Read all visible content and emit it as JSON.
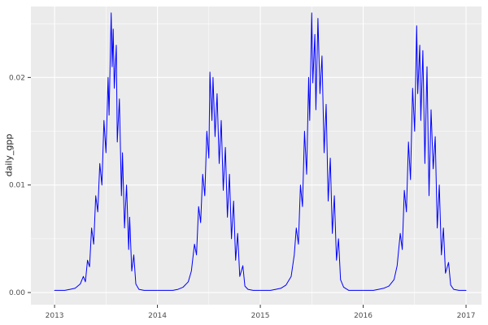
{
  "chart_data": {
    "type": "line",
    "title": "",
    "xlabel": "",
    "ylabel": "daily_gpp",
    "panel_background": "#EBEBEB",
    "grid_color": "#FFFFFF",
    "axis_text_color": "#4D4D4D",
    "tick_mark_color": "#333333",
    "legend": "none",
    "xlim": [
      2012.77,
      2017.15
    ],
    "ylim": [
      -0.00113,
      0.0266
    ],
    "x_ticks": [
      2013,
      2014,
      2015,
      2016,
      2017
    ],
    "x_tick_labels": [
      "2013",
      "2014",
      "2015",
      "2016",
      "2017"
    ],
    "x_minor_ticks": [
      2013.5,
      2014.5,
      2015.5,
      2016.5
    ],
    "y_ticks": [
      0,
      0.01,
      0.02
    ],
    "y_tick_labels": [
      "0.00",
      "0.01",
      "0.02"
    ],
    "y_minor_ticks": [
      0.005,
      0.015,
      0.025
    ],
    "series": [
      {
        "name": "daily_gpp",
        "color": "#0000FF",
        "points": [
          [
            2013.0,
            0.0002
          ],
          [
            2013.05,
            0.0002
          ],
          [
            2013.1,
            0.0002
          ],
          [
            2013.15,
            0.0003
          ],
          [
            2013.2,
            0.0004
          ],
          [
            2013.25,
            0.0008
          ],
          [
            2013.28,
            0.0015
          ],
          [
            2013.3,
            0.001
          ],
          [
            2013.32,
            0.003
          ],
          [
            2013.34,
            0.0024
          ],
          [
            2013.36,
            0.006
          ],
          [
            2013.38,
            0.0045
          ],
          [
            2013.4,
            0.009
          ],
          [
            2013.42,
            0.0075
          ],
          [
            2013.44,
            0.012
          ],
          [
            2013.46,
            0.01
          ],
          [
            2013.48,
            0.016
          ],
          [
            2013.5,
            0.013
          ],
          [
            2013.52,
            0.02
          ],
          [
            2013.53,
            0.0165
          ],
          [
            2013.55,
            0.026
          ],
          [
            2013.56,
            0.021
          ],
          [
            2013.57,
            0.0245
          ],
          [
            2013.58,
            0.019
          ],
          [
            2013.6,
            0.023
          ],
          [
            2013.61,
            0.014
          ],
          [
            2013.63,
            0.018
          ],
          [
            2013.65,
            0.009
          ],
          [
            2013.66,
            0.013
          ],
          [
            2013.68,
            0.006
          ],
          [
            2013.7,
            0.01
          ],
          [
            2013.72,
            0.004
          ],
          [
            2013.73,
            0.007
          ],
          [
            2013.75,
            0.002
          ],
          [
            2013.77,
            0.0035
          ],
          [
            2013.79,
            0.0008
          ],
          [
            2013.82,
            0.0003
          ],
          [
            2013.87,
            0.0002
          ],
          [
            2013.93,
            0.0002
          ],
          [
            2014.0,
            0.0002
          ],
          [
            2014.05,
            0.0002
          ],
          [
            2014.1,
            0.0002
          ],
          [
            2014.15,
            0.0002
          ],
          [
            2014.2,
            0.0003
          ],
          [
            2014.25,
            0.0005
          ],
          [
            2014.3,
            0.001
          ],
          [
            2014.33,
            0.002
          ],
          [
            2014.36,
            0.0045
          ],
          [
            2014.38,
            0.0035
          ],
          [
            2014.4,
            0.008
          ],
          [
            2014.42,
            0.0065
          ],
          [
            2014.44,
            0.011
          ],
          [
            2014.46,
            0.009
          ],
          [
            2014.48,
            0.015
          ],
          [
            2014.5,
            0.0125
          ],
          [
            2014.51,
            0.0205
          ],
          [
            2014.53,
            0.016
          ],
          [
            2014.54,
            0.02
          ],
          [
            2014.56,
            0.0145
          ],
          [
            2014.58,
            0.0185
          ],
          [
            2014.6,
            0.012
          ],
          [
            2014.62,
            0.016
          ],
          [
            2014.64,
            0.0095
          ],
          [
            2014.66,
            0.0135
          ],
          [
            2014.68,
            0.007
          ],
          [
            2014.7,
            0.011
          ],
          [
            2014.72,
            0.005
          ],
          [
            2014.74,
            0.0085
          ],
          [
            2014.76,
            0.003
          ],
          [
            2014.78,
            0.0055
          ],
          [
            2014.8,
            0.0015
          ],
          [
            2014.83,
            0.0025
          ],
          [
            2014.85,
            0.0006
          ],
          [
            2014.88,
            0.0003
          ],
          [
            2014.93,
            0.0002
          ],
          [
            2015.0,
            0.0002
          ],
          [
            2015.05,
            0.0002
          ],
          [
            2015.1,
            0.0002
          ],
          [
            2015.15,
            0.0003
          ],
          [
            2015.2,
            0.0004
          ],
          [
            2015.25,
            0.0007
          ],
          [
            2015.3,
            0.0015
          ],
          [
            2015.33,
            0.0035
          ],
          [
            2015.35,
            0.006
          ],
          [
            2015.37,
            0.0045
          ],
          [
            2015.39,
            0.01
          ],
          [
            2015.41,
            0.008
          ],
          [
            2015.43,
            0.015
          ],
          [
            2015.45,
            0.011
          ],
          [
            2015.47,
            0.02
          ],
          [
            2015.48,
            0.016
          ],
          [
            2015.5,
            0.026
          ],
          [
            2015.51,
            0.0195
          ],
          [
            2015.53,
            0.024
          ],
          [
            2015.54,
            0.017
          ],
          [
            2015.56,
            0.0255
          ],
          [
            2015.58,
            0.0185
          ],
          [
            2015.6,
            0.022
          ],
          [
            2015.62,
            0.013
          ],
          [
            2015.64,
            0.0175
          ],
          [
            2015.66,
            0.0085
          ],
          [
            2015.68,
            0.0125
          ],
          [
            2015.7,
            0.0055
          ],
          [
            2015.72,
            0.009
          ],
          [
            2015.74,
            0.003
          ],
          [
            2015.76,
            0.005
          ],
          [
            2015.78,
            0.0012
          ],
          [
            2015.81,
            0.0005
          ],
          [
            2015.86,
            0.0002
          ],
          [
            2015.92,
            0.0002
          ],
          [
            2016.0,
            0.0002
          ],
          [
            2016.05,
            0.0002
          ],
          [
            2016.1,
            0.0002
          ],
          [
            2016.15,
            0.0003
          ],
          [
            2016.2,
            0.0004
          ],
          [
            2016.25,
            0.0006
          ],
          [
            2016.3,
            0.0012
          ],
          [
            2016.33,
            0.0025
          ],
          [
            2016.36,
            0.0055
          ],
          [
            2016.38,
            0.004
          ],
          [
            2016.4,
            0.0095
          ],
          [
            2016.42,
            0.0075
          ],
          [
            2016.44,
            0.014
          ],
          [
            2016.46,
            0.0105
          ],
          [
            2016.48,
            0.019
          ],
          [
            2016.5,
            0.015
          ],
          [
            2016.52,
            0.0248
          ],
          [
            2016.53,
            0.0185
          ],
          [
            2016.55,
            0.023
          ],
          [
            2016.56,
            0.016
          ],
          [
            2016.58,
            0.0225
          ],
          [
            2016.6,
            0.012
          ],
          [
            2016.62,
            0.021
          ],
          [
            2016.64,
            0.009
          ],
          [
            2016.66,
            0.017
          ],
          [
            2016.68,
            0.0115
          ],
          [
            2016.7,
            0.0145
          ],
          [
            2016.72,
            0.006
          ],
          [
            2016.74,
            0.01
          ],
          [
            2016.76,
            0.0035
          ],
          [
            2016.78,
            0.006
          ],
          [
            2016.8,
            0.0018
          ],
          [
            2016.83,
            0.0028
          ],
          [
            2016.85,
            0.0007
          ],
          [
            2016.88,
            0.0003
          ],
          [
            2016.93,
            0.0002
          ],
          [
            2017.0,
            0.0002
          ]
        ]
      }
    ]
  }
}
